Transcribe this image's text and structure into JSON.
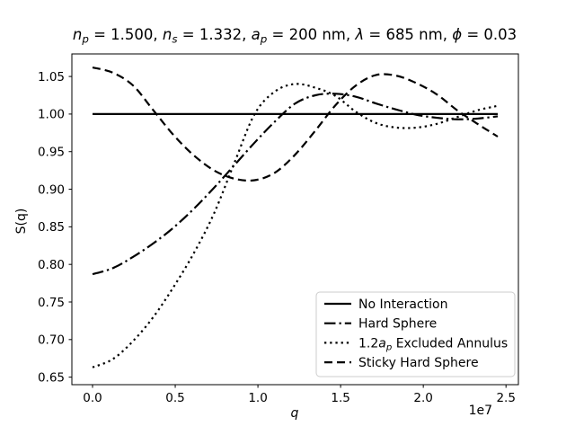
{
  "figure": {
    "background": "#ffffff",
    "line_color": "#000000",
    "legend_border_color": "#cccccc",
    "ylabel": "S(q)",
    "offset_label": "1e7",
    "title_segments": [
      {
        "text": "n",
        "style": "italic"
      },
      {
        "text": "p",
        "style": "sub-italic"
      },
      {
        "text": " = 1.500, "
      },
      {
        "text": "n",
        "style": "italic"
      },
      {
        "text": "s",
        "style": "sub-italic"
      },
      {
        "text": " = 1.332, "
      },
      {
        "text": "a",
        "style": "italic"
      },
      {
        "text": "p",
        "style": "sub-italic"
      },
      {
        "text": " = 200 nm, "
      },
      {
        "text": "λ",
        "style": "italic"
      },
      {
        "text": " = 685 nm, "
      },
      {
        "text": "ϕ",
        "style": "italic"
      },
      {
        "text": " = 0.03"
      }
    ],
    "xlabel_segments": [
      {
        "text": "q",
        "style": "italic"
      }
    ]
  },
  "axes": {
    "xlim": [
      -0.125,
      2.575
    ],
    "ylim": [
      0.64,
      1.08
    ],
    "xticks": {
      "values": [
        0.0,
        0.5,
        1.0,
        1.5,
        2.0,
        2.5
      ],
      "labels": [
        "0.0",
        "0.5",
        "1.0",
        "1.5",
        "2.0",
        "2.5"
      ]
    },
    "yticks": {
      "values": [
        0.65,
        0.7,
        0.75,
        0.8,
        0.85,
        0.9,
        0.95,
        1.0,
        1.05
      ],
      "labels": [
        "0.65",
        "0.70",
        "0.75",
        "0.80",
        "0.85",
        "0.90",
        "0.95",
        "1.00",
        "1.05"
      ]
    }
  },
  "legend": {
    "entries": [
      {
        "name": "No Interaction",
        "linestyle": "solid",
        "label_segments": [
          {
            "text": "No Interaction"
          }
        ]
      },
      {
        "name": "Hard Sphere",
        "linestyle": "dashdot",
        "label_segments": [
          {
            "text": "Hard Sphere"
          }
        ]
      },
      {
        "name": "1.2a_p Excluded Annulus",
        "linestyle": "dotted",
        "label_segments": [
          {
            "text": "1.2"
          },
          {
            "text": "a",
            "style": "italic"
          },
          {
            "text": "p",
            "style": "sub-italic"
          },
          {
            "text": " Excluded Annulus"
          }
        ]
      },
      {
        "name": "Sticky Hard Sphere",
        "linestyle": "dashed",
        "label_segments": [
          {
            "text": "Sticky Hard Sphere"
          }
        ]
      }
    ]
  },
  "chart_data": {
    "type": "line",
    "title": "n_p = 1.500, n_s = 1.332, a_p = 200 nm, λ = 685 nm, ϕ = 0.03",
    "xlabel": "q",
    "ylabel": "S(q)",
    "x_unit_multiplier": "1e7",
    "xlim": [
      -0.125,
      2.575
    ],
    "ylim": [
      0.64,
      1.08
    ],
    "grid": false,
    "legend_position": "lower right",
    "x": [
      0.0,
      0.1225,
      0.245,
      0.3675,
      0.49,
      0.6125,
      0.735,
      0.8575,
      0.98,
      1.1025,
      1.225,
      1.3475,
      1.47,
      1.5925,
      1.715,
      1.8375,
      1.96,
      2.0825,
      2.205,
      2.3275,
      2.45
    ],
    "series": [
      {
        "name": "No Interaction",
        "linestyle": "solid",
        "color": "#000000",
        "values": [
          1.0,
          1.0,
          1.0,
          1.0,
          1.0,
          1.0,
          1.0,
          1.0,
          1.0,
          1.0,
          1.0,
          1.0,
          1.0,
          1.0,
          1.0,
          1.0,
          1.0,
          1.0,
          1.0,
          1.0,
          1.0
        ]
      },
      {
        "name": "Hard Sphere",
        "linestyle": "dashdot",
        "color": "#000000",
        "values": [
          0.787,
          0.795,
          0.81,
          0.828,
          0.849,
          0.874,
          0.902,
          0.932,
          0.962,
          0.99,
          1.014,
          1.025,
          1.027,
          1.023,
          1.014,
          1.006,
          0.999,
          0.995,
          0.993,
          0.994,
          0.997
        ]
      },
      {
        "name": "1.2a_p Excluded Annulus",
        "linestyle": "dotted",
        "color": "#000000",
        "values": [
          0.663,
          0.674,
          0.698,
          0.73,
          0.77,
          0.815,
          0.868,
          0.935,
          1.0,
          1.03,
          1.04,
          1.035,
          1.024,
          1.003,
          0.988,
          0.982,
          0.982,
          0.987,
          0.996,
          1.005,
          1.011
        ]
      },
      {
        "name": "Sticky Hard Sphere",
        "linestyle": "dashed",
        "color": "#000000",
        "values": [
          1.062,
          1.055,
          1.038,
          1.005,
          0.972,
          0.945,
          0.925,
          0.914,
          0.912,
          0.922,
          0.946,
          0.978,
          1.012,
          1.038,
          1.052,
          1.051,
          1.041,
          1.026,
          1.005,
          0.987,
          0.97
        ]
      }
    ]
  }
}
